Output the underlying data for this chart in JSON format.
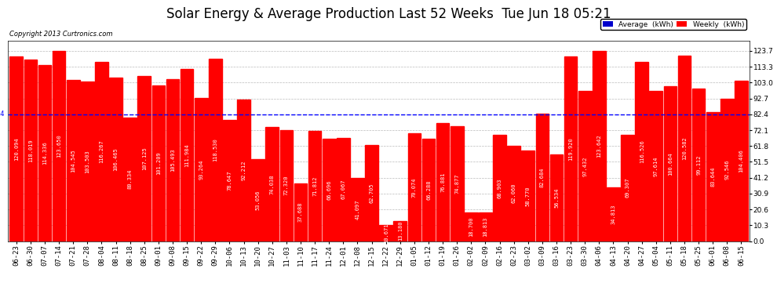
{
  "title": "Solar Energy & Average Production Last 52 Weeks  Tue Jun 18 05:21",
  "copyright": "Copyright 2013 Curtronics.com",
  "bar_color": "#FF0000",
  "average_color": "#0000FF",
  "average_value": 82.4,
  "ylabel_right_ticks": [
    0.0,
    10.3,
    20.6,
    30.9,
    41.2,
    51.5,
    61.8,
    72.1,
    82.4,
    92.7,
    103.0,
    113.3,
    123.7
  ],
  "legend_avg_color": "#0000CC",
  "legend_weekly_color": "#FF0000",
  "categories": [
    "06-23",
    "06-30",
    "07-07",
    "07-14",
    "07-21",
    "07-28",
    "08-04",
    "08-11",
    "08-18",
    "08-25",
    "09-01",
    "09-08",
    "09-15",
    "09-22",
    "09-29",
    "10-06",
    "10-13",
    "10-20",
    "10-27",
    "11-03",
    "11-10",
    "11-17",
    "11-24",
    "12-01",
    "12-08",
    "12-15",
    "12-22",
    "12-29",
    "01-05",
    "01-12",
    "01-19",
    "01-26",
    "02-02",
    "02-09",
    "02-16",
    "02-23",
    "03-02",
    "03-09",
    "03-16",
    "03-23",
    "03-30",
    "04-06",
    "04-13",
    "04-20",
    "04-27",
    "05-04",
    "05-11",
    "05-18",
    "05-25",
    "06-01",
    "06-08",
    "06-15"
  ],
  "values": [
    120.094,
    118.019,
    114.336,
    123.65,
    104.545,
    103.503,
    116.267,
    106.465,
    80.334,
    107.125,
    101.209,
    105.493,
    111.984,
    93.264,
    118.53,
    78.647,
    92.212,
    53.056,
    74.038,
    72.32,
    37.688,
    71.812,
    66.696,
    67.067,
    41.097,
    62.705,
    10.671,
    13.18,
    70.074,
    66.288,
    76.881,
    74.877,
    18.7,
    18.813,
    68.903,
    62.06,
    58.77,
    82.684,
    56.534,
    119.92,
    97.432,
    123.642,
    34.813,
    69.307,
    116.526,
    97.614,
    100.664,
    120.582,
    99.112,
    83.644,
    92.546,
    104.406
  ],
  "bg_color": "#FFFFFF",
  "plot_bg_color": "#FFFFFF",
  "grid_color": "#AAAAAA",
  "title_fontsize": 12,
  "tick_fontsize": 6.5,
  "bar_label_fontsize": 5.0,
  "ylim_max": 130
}
